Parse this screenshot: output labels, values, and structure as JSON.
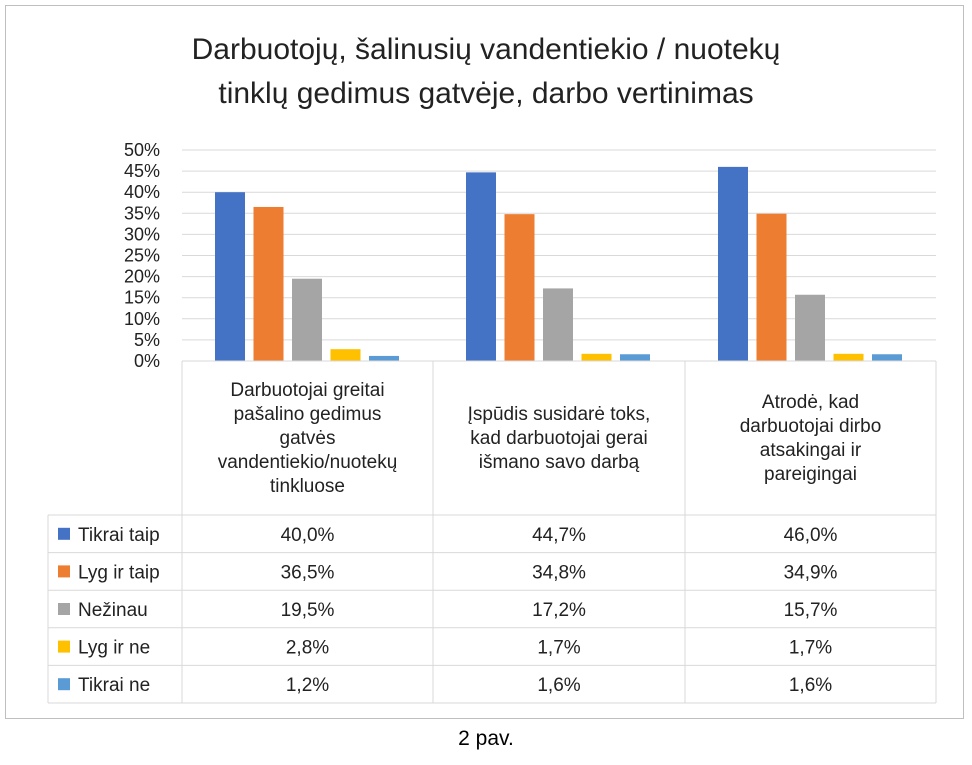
{
  "chart_data": {
    "type": "bar",
    "title_lines": [
      "Darbuotojų, šalinusių vandentiekio / nuotekų",
      "tinklų gedimus gatvėje, darbo vertinimas"
    ],
    "categories": [
      [
        "Darbuotojai greitai",
        "pašalino gedimus",
        "gatvės",
        "vandentiekio/nuotekų",
        "tinkluose"
      ],
      [
        "Įspūdis susidarė toks,",
        "kad darbuotojai gerai",
        "išmano savo darbą"
      ],
      [
        "Atrodė, kad",
        "darbuotojai dirbo",
        "atsakingai ir",
        "pareigingai"
      ]
    ],
    "ylim": [
      0,
      50
    ],
    "y_ticks": [
      "0%",
      "5%",
      "10%",
      "15%",
      "20%",
      "25%",
      "30%",
      "35%",
      "40%",
      "45%",
      "50%"
    ],
    "grid": true,
    "series": [
      {
        "name": "Tikrai taip",
        "color": "#4472C4",
        "values": [
          40.0,
          44.7,
          46.0
        ],
        "labels": [
          "40,0%",
          "44,7%",
          "46,0%"
        ]
      },
      {
        "name": "Lyg ir taip",
        "color": "#ED7D31",
        "values": [
          36.5,
          34.8,
          34.9
        ],
        "labels": [
          "36,5%",
          "34,8%",
          "34,9%"
        ]
      },
      {
        "name": "Nežinau",
        "color": "#A5A5A5",
        "values": [
          19.5,
          17.2,
          15.7
        ],
        "labels": [
          "19,5%",
          "17,2%",
          "15,7%"
        ]
      },
      {
        "name": "Lyg ir ne",
        "color": "#FFC000",
        "values": [
          2.8,
          1.7,
          1.7
        ],
        "labels": [
          "2,8%",
          "1,7%",
          "1,7%"
        ]
      },
      {
        "name": "Tikrai ne",
        "color": "#5B9BD5",
        "values": [
          1.2,
          1.6,
          1.6
        ],
        "labels": [
          "1,2%",
          "1,6%",
          "1,6%"
        ]
      }
    ]
  },
  "caption": "2 pav."
}
